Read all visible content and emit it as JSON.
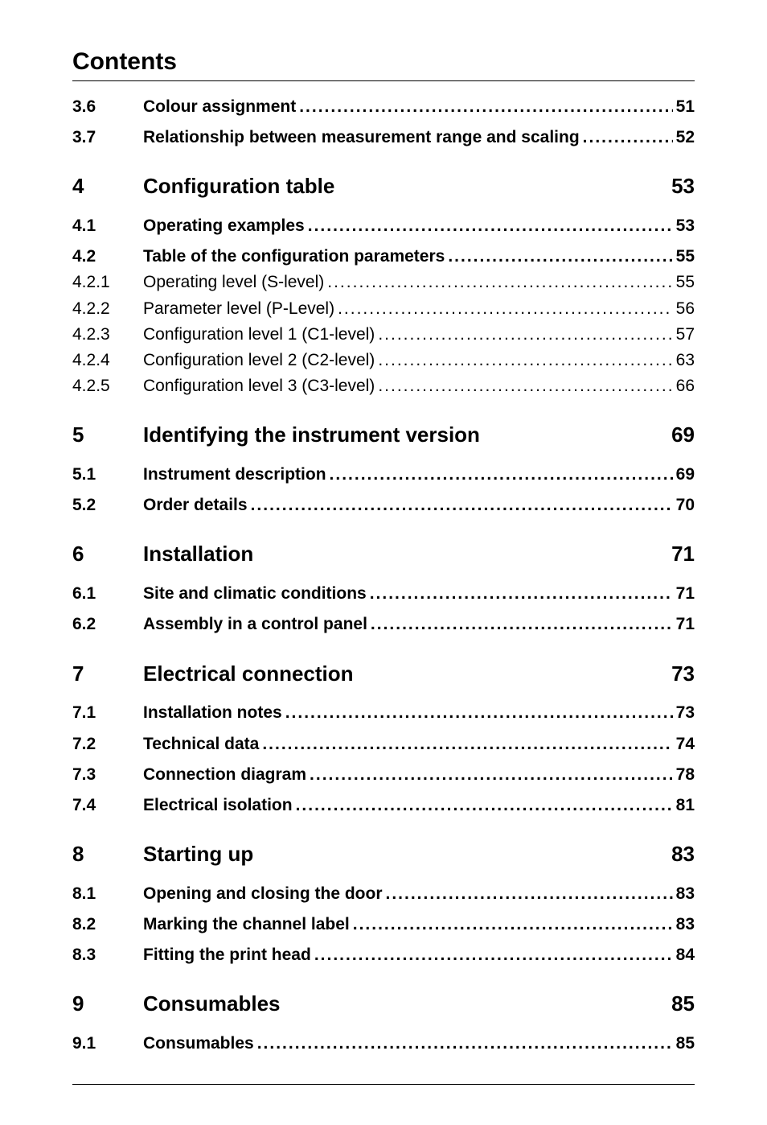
{
  "heading": "Contents",
  "entries": [
    {
      "num": "3.6",
      "label": "Colour assignment",
      "page": "51",
      "style": "bold",
      "dots": true,
      "gap_before": "none"
    },
    {
      "num": "3.7",
      "label": "Relationship between measurement range and scaling",
      "page": "52",
      "style": "bold",
      "dots": true,
      "gap_before": "xs"
    },
    {
      "num": "4",
      "label": "Configuration table",
      "page": "53",
      "style": "chapter",
      "dots": false,
      "gap_before": "md"
    },
    {
      "num": "4.1",
      "label": "Operating examples",
      "page": "53",
      "style": "bold",
      "dots": true,
      "gap_before": "sm"
    },
    {
      "num": "4.2",
      "label": "Table of the configuration parameters",
      "page": "55",
      "style": "bold",
      "dots": true,
      "gap_before": "xs"
    },
    {
      "num": "4.2.1",
      "label": "Operating level (S-level)",
      "page": "55",
      "style": "plain",
      "dots": true,
      "gap_before": "none"
    },
    {
      "num": "4.2.2",
      "label": "Parameter level (P-Level)",
      "page": "56",
      "style": "plain",
      "dots": true,
      "gap_before": "none"
    },
    {
      "num": "4.2.3",
      "label": "Configuration level 1 (C1-level)",
      "page": "57",
      "style": "plain",
      "dots": true,
      "gap_before": "none"
    },
    {
      "num": "4.2.4",
      "label": "Configuration level 2 (C2-level)",
      "page": "63",
      "style": "plain",
      "dots": true,
      "gap_before": "none"
    },
    {
      "num": "4.2.5",
      "label": "Configuration level 3 (C3-level)",
      "page": "66",
      "style": "plain",
      "dots": true,
      "gap_before": "none"
    },
    {
      "num": "5",
      "label": "Identifying the instrument version",
      "page": "69",
      "style": "chapter",
      "dots": false,
      "gap_before": "md"
    },
    {
      "num": "5.1",
      "label": "Instrument description",
      "page": "69",
      "style": "bold",
      "dots": true,
      "gap_before": "sm"
    },
    {
      "num": "5.2",
      "label": "Order details",
      "page": "70",
      "style": "bold",
      "dots": true,
      "gap_before": "xs"
    },
    {
      "num": "6",
      "label": "Installation",
      "page": "71",
      "style": "chapter",
      "dots": false,
      "gap_before": "md"
    },
    {
      "num": "6.1",
      "label": "Site and climatic conditions",
      "page": "71",
      "style": "bold",
      "dots": true,
      "gap_before": "sm"
    },
    {
      "num": "6.2",
      "label": "Assembly in a control panel",
      "page": "71",
      "style": "bold",
      "dots": true,
      "gap_before": "xs"
    },
    {
      "num": "7",
      "label": "Electrical connection",
      "page": "73",
      "style": "chapter",
      "dots": false,
      "gap_before": "md"
    },
    {
      "num": "7.1",
      "label": "Installation notes",
      "page": "73",
      "style": "bold",
      "dots": true,
      "gap_before": "sm"
    },
    {
      "num": "7.2",
      "label": "Technical data",
      "page": "74",
      "style": "bold",
      "dots": true,
      "gap_before": "xs"
    },
    {
      "num": "7.3",
      "label": "Connection diagram",
      "page": "78",
      "style": "bold",
      "dots": true,
      "gap_before": "xs"
    },
    {
      "num": "7.4",
      "label": "Electrical isolation",
      "page": "81",
      "style": "bold",
      "dots": true,
      "gap_before": "xs"
    },
    {
      "num": "8",
      "label": "Starting up",
      "page": "83",
      "style": "chapter",
      "dots": false,
      "gap_before": "md"
    },
    {
      "num": "8.1",
      "label": "Opening and closing the door",
      "page": "83",
      "style": "bold",
      "dots": true,
      "gap_before": "sm"
    },
    {
      "num": "8.2",
      "label": "Marking the channel label",
      "page": "83",
      "style": "bold",
      "dots": true,
      "gap_before": "xs"
    },
    {
      "num": "8.3",
      "label": "Fitting the print head",
      "page": "84",
      "style": "bold",
      "dots": true,
      "gap_before": "xs"
    },
    {
      "num": "9",
      "label": "Consumables",
      "page": "85",
      "style": "chapter",
      "dots": false,
      "gap_before": "md"
    },
    {
      "num": "9.1",
      "label": "Consumables",
      "page": "85",
      "style": "bold",
      "dots": true,
      "gap_before": "sm"
    }
  ]
}
